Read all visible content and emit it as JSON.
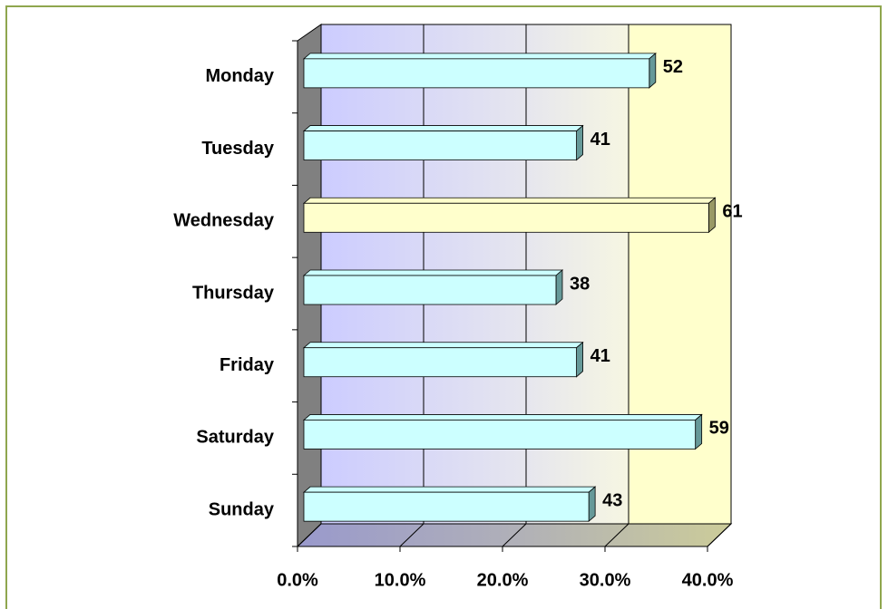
{
  "chart_data": {
    "type": "bar3d_horizontal",
    "categories": [
      "Monday",
      "Tuesday",
      "Wednesday",
      "Thursday",
      "Friday",
      "Saturday",
      "Sunday"
    ],
    "values": [
      33.7,
      26.6,
      39.5,
      24.6,
      26.6,
      38.2,
      27.8
    ],
    "data_labels": [
      52,
      41,
      61,
      38,
      41,
      59,
      43
    ],
    "colors": [
      "#ccffff",
      "#ccffff",
      "#ffffcc",
      "#ccffff",
      "#ccffff",
      "#ccffff",
      "#ccffff"
    ],
    "xlim": [
      0,
      40
    ],
    "xticks": [
      {
        "value": 0,
        "label": "0.0%"
      },
      {
        "value": 10,
        "label": "10.0%"
      },
      {
        "value": 20,
        "label": "20.0%"
      },
      {
        "value": 30,
        "label": "30.0%"
      },
      {
        "value": 40,
        "label": "40.0%"
      }
    ],
    "grid": true
  }
}
